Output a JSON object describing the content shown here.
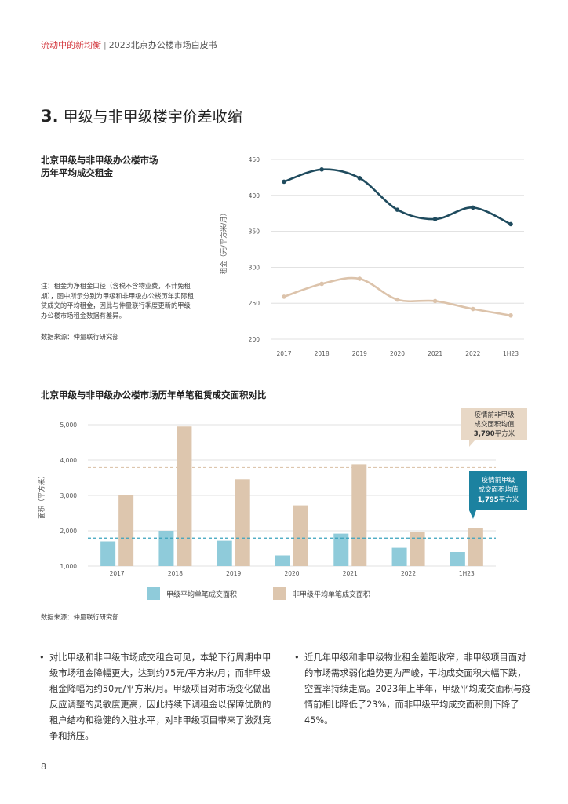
{
  "header": {
    "part1": "流动中的新均衡",
    "separator": "|",
    "part2": "2023北京办公楼市场白皮书"
  },
  "section": {
    "number": "3.",
    "title": "甲级与非甲级楼宇价差收缩"
  },
  "chart1": {
    "title_line1": "北京甲级与非甲级办公楼市场",
    "title_line2": "历年平均成交租金",
    "note": "注：租金为净租金口径（含税不含物业费，不计免租期），图中所示分别为甲级和非甲级办公楼历年实际租赁成交的平均租金，因此与仲量联行季度更新的甲级办公楼市场租金数据有差异。",
    "source": "数据来源：仲量联行研究部"
  },
  "chart2": {
    "title": "北京甲级与非甲级办公楼市场历年单笔租赁成交面积对比",
    "callout_nonA": {
      "line1": "疫情前非甲级",
      "line2": "成交面积均值",
      "value": "3,790",
      "unit": "平方米"
    },
    "callout_A": {
      "line1": "疫情前甲级",
      "line2": "成交面积均值",
      "value": "1,795",
      "unit": "平方米"
    },
    "legend_A": "甲级平均单笔成交面积",
    "legend_nonA": "非甲级平均单笔成交面积",
    "source": "数据来源：仲量联行研究部"
  },
  "colors": {
    "gradeA_line": "#1f4b5e",
    "nonA_line": "#dcc3ab",
    "gradeA_bar": "#8fcbda",
    "nonA_bar": "#ddc6ae",
    "gradeA_ref": "#3aa3bd",
    "nonA_ref": "#ddc6ae",
    "callout_nonA_bg": "#e8d8c6",
    "callout_A_bg": "#1c82a0",
    "header_red": "#d4393f"
  },
  "chart_data": [
    {
      "type": "line",
      "categories": [
        "2017",
        "2018",
        "2019",
        "2020",
        "2021",
        "2022",
        "1H23"
      ],
      "series": [
        {
          "values": [
            419,
            436,
            424,
            380,
            367,
            383,
            360
          ]
        },
        {
          "values": [
            259,
            277,
            284,
            255,
            253,
            242,
            233
          ]
        }
      ],
      "ylabel": "租金（元/平方米/月）",
      "ylim": [
        200,
        450
      ],
      "yticks": [
        200,
        250,
        300,
        350,
        400,
        450
      ],
      "grid": true
    },
    {
      "type": "bar",
      "categories": [
        "2017",
        "2018",
        "2019",
        "2020",
        "2021",
        "2022",
        "1H23"
      ],
      "series": [
        {
          "name": "甲级平均单笔成交面积",
          "values": [
            1700,
            2000,
            1720,
            1300,
            1920,
            1520,
            1400
          ]
        },
        {
          "name": "非甲级平均单笔成交面积",
          "values": [
            3000,
            4950,
            3460,
            2720,
            3880,
            1960,
            2080
          ]
        }
      ],
      "reference_lines": [
        1795,
        3790
      ],
      "ylabel": "面积（平方米）",
      "ylim": [
        1000,
        5000
      ],
      "yticks": [
        "1,000",
        "2,000",
        "3,000",
        "4,000",
        "5,000"
      ],
      "legend": "bottom"
    }
  ],
  "bullets": [
    "对比甲级和非甲级市场成交租金可见，本轮下行周期中甲级市场租金降幅更大，达到约75元/平方米/月；而非甲级租金降幅为约50元/平方米/月。甲级项目对市场变化做出反应调整的灵敏度更高，因此持续下调租金以保障优质的租户结构和稳健的入驻水平，对非甲级项目带来了激烈竞争和挤压。",
    "近几年甲级和非甲级物业租金差距收窄，非甲级项目面对的市场需求弱化趋势更为严峻，平均成交面积大幅下跌，空置率持续走高。2023年上半年，甲级平均成交面积与疫情前相比降低了23%，而非甲级平均成交面积则下降了45%。"
  ],
  "page_number": "8"
}
